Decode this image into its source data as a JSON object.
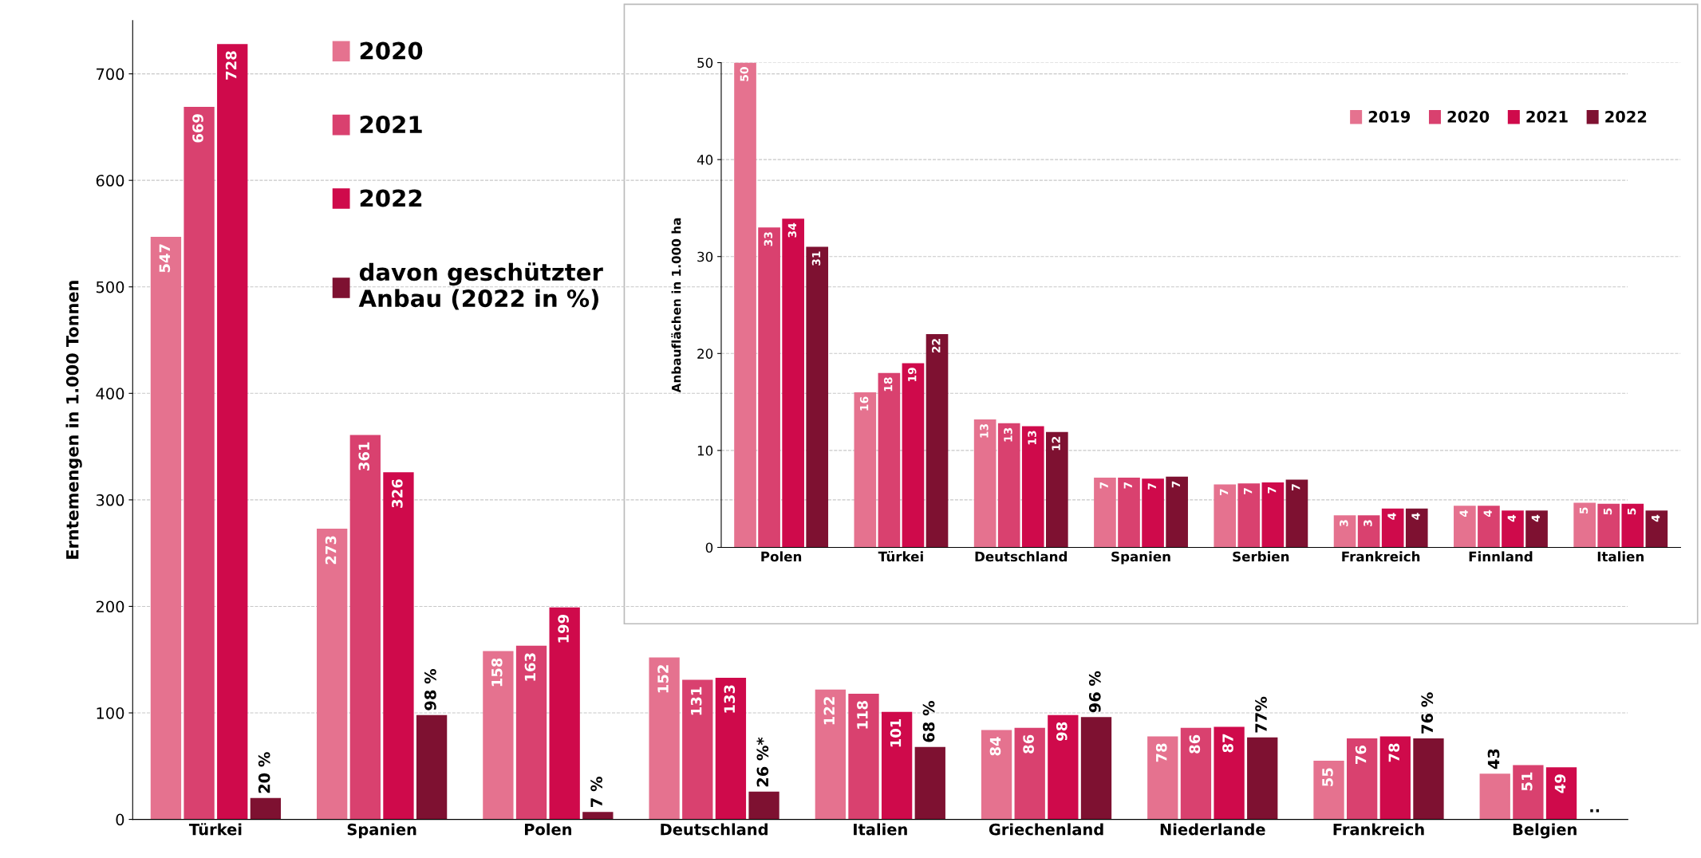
{
  "chart_data": [
    {
      "type": "bar",
      "ylabel": "Erntemengen in 1.000 Tonnen",
      "categories": [
        "Türkei",
        "Spanien",
        "Polen",
        "Deutschland",
        "Italien",
        "Griechenland",
        "Niederlande",
        "Frankreich",
        "Belgien"
      ],
      "ylim": [
        0,
        750
      ],
      "yticks": [
        0,
        100,
        200,
        300,
        400,
        500,
        600,
        700
      ],
      "grid": "y",
      "legend": "top left",
      "series": [
        {
          "name": "2020",
          "color": "#e5728f",
          "values": [
            547,
            273,
            158,
            152,
            122,
            84,
            78,
            55,
            43
          ],
          "value_labels": [
            "547",
            "273",
            "158",
            "152",
            "122",
            "84",
            "78",
            "55",
            "43"
          ]
        },
        {
          "name": "2021",
          "color": "#d9416f",
          "values": [
            669,
            361,
            163,
            131,
            118,
            86,
            86,
            76,
            51
          ],
          "value_labels": [
            "669",
            "361",
            "163",
            "131",
            "118",
            "86",
            "86",
            "76",
            "51"
          ]
        },
        {
          "name": "2022",
          "color": "#cf0a4b",
          "values": [
            728,
            326,
            199,
            133,
            101,
            98,
            87,
            78,
            49
          ],
          "value_labels": [
            "728",
            "326",
            "199",
            "133",
            "101",
            "98",
            "87",
            "78",
            "49"
          ]
        },
        {
          "name": "davon geschützter\nAnbau (2022 in %)",
          "color": "#7e1131",
          "values": [
            20,
            98,
            7,
            26,
            68,
            96,
            77,
            76,
            null
          ],
          "value_labels": [
            "20 %",
            "98 %",
            "7 %",
            "26 %*",
            "68 %",
            "96 %",
            "77%",
            "76 %",
            ".."
          ]
        }
      ]
    },
    {
      "type": "bar",
      "ylabel": "Anbauflächen in 1.000 ha",
      "categories": [
        "Polen",
        "Türkei",
        "Deutschland",
        "Spanien",
        "Serbien",
        "Frankreich",
        "Finnland",
        "Italien"
      ],
      "ylim": [
        0,
        50
      ],
      "yticks": [
        0,
        10,
        20,
        30,
        40,
        50
      ],
      "grid": "y",
      "legend": "top right",
      "series": [
        {
          "name": "2019",
          "color": "#e5728f",
          "values": [
            50,
            16,
            13.2,
            7.2,
            6.5,
            3.3,
            4.3,
            4.6
          ],
          "value_labels": [
            "50",
            "16",
            "13",
            "7",
            "7",
            "3",
            "4",
            "5"
          ]
        },
        {
          "name": "2020",
          "color": "#d9416f",
          "values": [
            33,
            18,
            12.8,
            7.2,
            6.6,
            3.3,
            4.3,
            4.5
          ],
          "value_labels": [
            "33",
            "18",
            "13",
            "7",
            "7",
            "3",
            "4",
            "5"
          ]
        },
        {
          "name": "2021",
          "color": "#cf0a4b",
          "values": [
            33.9,
            19,
            12.5,
            7.1,
            6.7,
            4.0,
            3.8,
            4.5
          ],
          "value_labels": [
            "34",
            "19",
            "13",
            "7",
            "7",
            "4",
            "4",
            "5"
          ]
        },
        {
          "name": "2022",
          "color": "#7e1131",
          "values": [
            31,
            22,
            11.9,
            7.3,
            7.0,
            4.0,
            3.8,
            3.8
          ],
          "value_labels": [
            "31",
            "22",
            "12",
            "7",
            "7",
            "4",
            "4",
            "4"
          ]
        }
      ]
    }
  ]
}
